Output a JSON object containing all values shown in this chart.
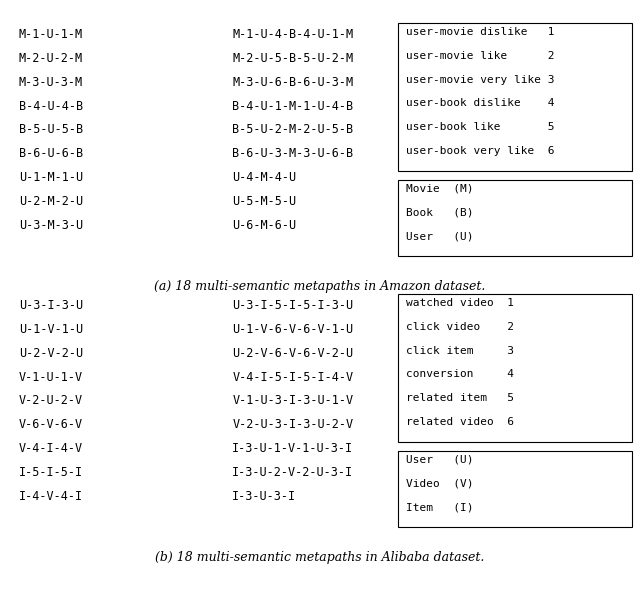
{
  "fig_width": 6.4,
  "fig_height": 5.89,
  "bg_color": "#ffffff",
  "amazon": {
    "col1": [
      "M-1-U-1-M",
      "M-2-U-2-M",
      "M-3-U-3-M",
      "B-4-U-4-B",
      "B-5-U-5-B",
      "B-6-U-6-B",
      "U-1-M-1-U",
      "U-2-M-2-U",
      "U-3-M-3-U"
    ],
    "col2": [
      "M-1-U-4-B-4-U-1-M",
      "M-2-U-5-B-5-U-2-M",
      "M-3-U-6-B-6-U-3-M",
      "B-4-U-1-M-1-U-4-B",
      "B-5-U-2-M-2-U-5-B",
      "B-6-U-3-M-3-U-6-B",
      "U-4-M-4-U",
      "U-5-M-5-U",
      "U-6-M-6-U"
    ],
    "legend1_lines": [
      "user-movie dislike   1",
      "user-movie like      2",
      "user-movie very like 3",
      "user-book dislike    4",
      "user-book like       5",
      "user-book very like  6"
    ],
    "legend2_lines": [
      "Movie  (M)",
      "Book   (B)",
      "User   (U)"
    ],
    "caption": "(a) 18 multi-semantic metapaths in Amazon dataset."
  },
  "alibaba": {
    "col1": [
      "U-3-I-3-U",
      "U-1-V-1-U",
      "U-2-V-2-U",
      "V-1-U-1-V",
      "V-2-U-2-V",
      "V-6-V-6-V",
      "V-4-I-4-V",
      "I-5-I-5-I",
      "I-4-V-4-I"
    ],
    "col2": [
      "U-3-I-5-I-5-I-3-U",
      "U-1-V-6-V-6-V-1-U",
      "U-2-V-6-V-6-V-2-U",
      "V-4-I-5-I-5-I-4-V",
      "V-1-U-3-I-3-U-1-V",
      "V-2-U-3-I-3-U-2-V",
      "I-3-U-1-V-1-U-3-I",
      "I-3-U-2-V-2-U-3-I",
      "I-3-U-3-I"
    ],
    "legend1_lines": [
      "watched video  1",
      "click video    2",
      "click item     3",
      "conversion     4",
      "related item   5",
      "related video  6"
    ],
    "legend2_lines": [
      "User   (U)",
      "Video  (V)",
      "Item   (I)"
    ],
    "caption": "(b) 18 multi-semantic metapaths in Alibaba dataset."
  }
}
